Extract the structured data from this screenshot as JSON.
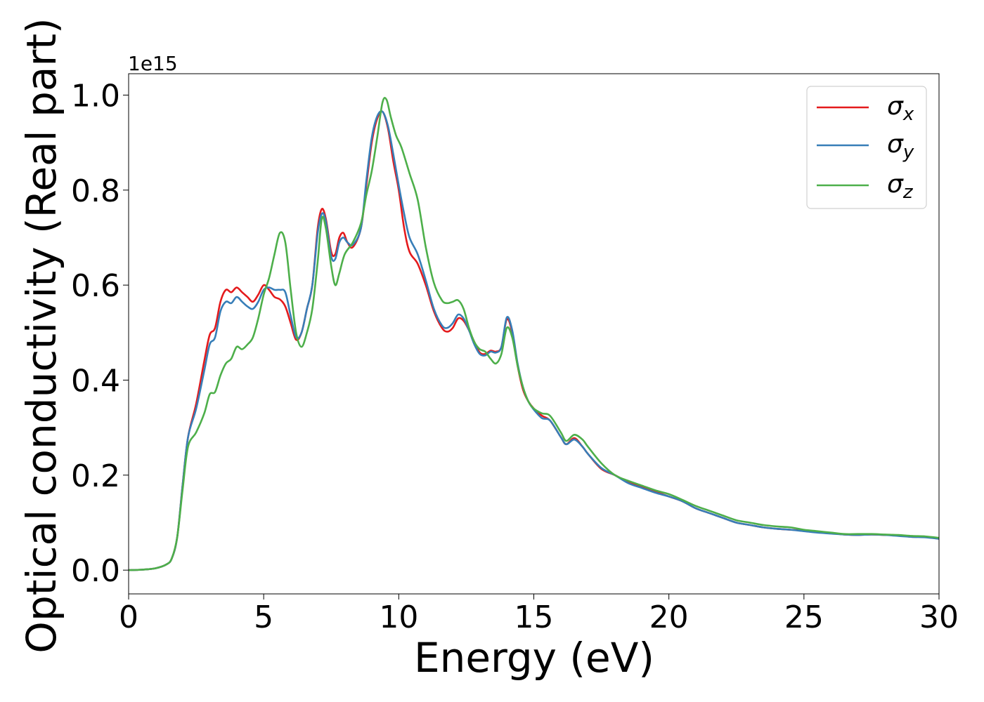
{
  "chart_data": {
    "type": "line",
    "title": "",
    "xlabel": "Energy (eV)",
    "ylabel": "Optical conductivity (Real part)",
    "y_offset_label": "1e15",
    "y_multiplier": 1000000000000000.0,
    "xlim": [
      0,
      30
    ],
    "ylim": [
      -0.05,
      1.045
    ],
    "xticks": [
      0,
      5,
      10,
      15,
      20,
      25,
      30
    ],
    "xtick_labels": [
      "0",
      "5",
      "10",
      "15",
      "20",
      "25",
      "30"
    ],
    "yticks": [
      0.0,
      0.2,
      0.4,
      0.6,
      0.8,
      1.0
    ],
    "ytick_labels": [
      "0.0",
      "0.2",
      "0.4",
      "0.6",
      "0.8",
      "1.0"
    ],
    "grid": false,
    "legend_position": "top-right",
    "series": [
      {
        "name": "σx",
        "legend_base": "σ",
        "legend_sub": "x",
        "color": "#e41a1c",
        "points": [
          [
            0,
            0
          ],
          [
            0.5,
            0.001
          ],
          [
            1.0,
            0.004
          ],
          [
            1.4,
            0.012
          ],
          [
            1.6,
            0.025
          ],
          [
            1.8,
            0.07
          ],
          [
            2.0,
            0.18
          ],
          [
            2.2,
            0.28
          ],
          [
            2.5,
            0.35
          ],
          [
            2.8,
            0.44
          ],
          [
            3.0,
            0.495
          ],
          [
            3.2,
            0.51
          ],
          [
            3.4,
            0.565
          ],
          [
            3.6,
            0.59
          ],
          [
            3.8,
            0.585
          ],
          [
            4.0,
            0.595
          ],
          [
            4.2,
            0.585
          ],
          [
            4.4,
            0.575
          ],
          [
            4.6,
            0.565
          ],
          [
            4.8,
            0.58
          ],
          [
            5.0,
            0.6
          ],
          [
            5.2,
            0.59
          ],
          [
            5.4,
            0.575
          ],
          [
            5.6,
            0.57
          ],
          [
            5.8,
            0.555
          ],
          [
            6.0,
            0.52
          ],
          [
            6.2,
            0.485
          ],
          [
            6.4,
            0.5
          ],
          [
            6.6,
            0.55
          ],
          [
            6.8,
            0.6
          ],
          [
            7.0,
            0.72
          ],
          [
            7.15,
            0.76
          ],
          [
            7.3,
            0.74
          ],
          [
            7.5,
            0.67
          ],
          [
            7.65,
            0.665
          ],
          [
            7.8,
            0.7
          ],
          [
            7.95,
            0.71
          ],
          [
            8.1,
            0.69
          ],
          [
            8.3,
            0.68
          ],
          [
            8.6,
            0.72
          ],
          [
            8.8,
            0.81
          ],
          [
            9.0,
            0.9
          ],
          [
            9.2,
            0.95
          ],
          [
            9.4,
            0.965
          ],
          [
            9.6,
            0.93
          ],
          [
            9.8,
            0.86
          ],
          [
            10.0,
            0.8
          ],
          [
            10.2,
            0.72
          ],
          [
            10.4,
            0.67
          ],
          [
            10.7,
            0.645
          ],
          [
            11.0,
            0.6
          ],
          [
            11.3,
            0.545
          ],
          [
            11.6,
            0.51
          ],
          [
            11.8,
            0.502
          ],
          [
            12.0,
            0.51
          ],
          [
            12.2,
            0.53
          ],
          [
            12.4,
            0.525
          ],
          [
            12.6,
            0.505
          ],
          [
            12.8,
            0.48
          ],
          [
            13.0,
            0.458
          ],
          [
            13.2,
            0.455
          ],
          [
            13.4,
            0.462
          ],
          [
            13.6,
            0.46
          ],
          [
            13.8,
            0.47
          ],
          [
            14.0,
            0.528
          ],
          [
            14.2,
            0.5
          ],
          [
            14.4,
            0.43
          ],
          [
            14.6,
            0.38
          ],
          [
            14.8,
            0.355
          ],
          [
            15.0,
            0.34
          ],
          [
            15.3,
            0.325
          ],
          [
            15.6,
            0.315
          ],
          [
            16.0,
            0.28
          ],
          [
            16.2,
            0.265
          ],
          [
            16.5,
            0.278
          ],
          [
            16.8,
            0.26
          ],
          [
            17.0,
            0.245
          ],
          [
            17.5,
            0.213
          ],
          [
            18.0,
            0.2
          ],
          [
            18.5,
            0.185
          ],
          [
            19.0,
            0.175
          ],
          [
            19.5,
            0.165
          ],
          [
            20.0,
            0.155
          ],
          [
            20.5,
            0.145
          ],
          [
            21.0,
            0.13
          ],
          [
            21.5,
            0.12
          ],
          [
            22.0,
            0.11
          ],
          [
            22.5,
            0.1
          ],
          [
            23.0,
            0.095
          ],
          [
            23.5,
            0.09
          ],
          [
            24.0,
            0.087
          ],
          [
            24.5,
            0.085
          ],
          [
            25.0,
            0.083
          ],
          [
            25.5,
            0.08
          ],
          [
            26.0,
            0.078
          ],
          [
            26.5,
            0.075
          ],
          [
            27.0,
            0.074
          ],
          [
            27.5,
            0.075
          ],
          [
            28.0,
            0.074
          ],
          [
            28.5,
            0.073
          ],
          [
            29.0,
            0.07
          ],
          [
            29.5,
            0.07
          ],
          [
            30.0,
            0.066
          ]
        ]
      },
      {
        "name": "σy",
        "legend_base": "σ",
        "legend_sub": "y",
        "color": "#377eb8",
        "points": [
          [
            0,
            0
          ],
          [
            0.5,
            0.001
          ],
          [
            1.0,
            0.004
          ],
          [
            1.4,
            0.012
          ],
          [
            1.6,
            0.025
          ],
          [
            1.8,
            0.07
          ],
          [
            2.0,
            0.18
          ],
          [
            2.2,
            0.28
          ],
          [
            2.5,
            0.34
          ],
          [
            2.8,
            0.42
          ],
          [
            3.0,
            0.475
          ],
          [
            3.2,
            0.49
          ],
          [
            3.4,
            0.545
          ],
          [
            3.6,
            0.565
          ],
          [
            3.8,
            0.562
          ],
          [
            4.0,
            0.575
          ],
          [
            4.2,
            0.565
          ],
          [
            4.4,
            0.555
          ],
          [
            4.6,
            0.55
          ],
          [
            4.8,
            0.565
          ],
          [
            5.0,
            0.59
          ],
          [
            5.2,
            0.595
          ],
          [
            5.4,
            0.59
          ],
          [
            5.6,
            0.59
          ],
          [
            5.8,
            0.585
          ],
          [
            6.0,
            0.535
          ],
          [
            6.2,
            0.49
          ],
          [
            6.4,
            0.5
          ],
          [
            6.6,
            0.55
          ],
          [
            6.8,
            0.6
          ],
          [
            7.0,
            0.71
          ],
          [
            7.15,
            0.75
          ],
          [
            7.3,
            0.735
          ],
          [
            7.5,
            0.66
          ],
          [
            7.65,
            0.655
          ],
          [
            7.8,
            0.69
          ],
          [
            7.95,
            0.7
          ],
          [
            8.1,
            0.69
          ],
          [
            8.3,
            0.685
          ],
          [
            8.6,
            0.72
          ],
          [
            8.8,
            0.82
          ],
          [
            9.0,
            0.91
          ],
          [
            9.2,
            0.955
          ],
          [
            9.4,
            0.965
          ],
          [
            9.6,
            0.935
          ],
          [
            9.8,
            0.875
          ],
          [
            10.0,
            0.81
          ],
          [
            10.2,
            0.75
          ],
          [
            10.4,
            0.7
          ],
          [
            10.7,
            0.665
          ],
          [
            11.0,
            0.61
          ],
          [
            11.3,
            0.55
          ],
          [
            11.6,
            0.515
          ],
          [
            11.8,
            0.51
          ],
          [
            12.0,
            0.52
          ],
          [
            12.2,
            0.538
          ],
          [
            12.4,
            0.53
          ],
          [
            12.6,
            0.505
          ],
          [
            12.8,
            0.475
          ],
          [
            13.0,
            0.455
          ],
          [
            13.2,
            0.452
          ],
          [
            13.4,
            0.46
          ],
          [
            13.6,
            0.458
          ],
          [
            13.8,
            0.47
          ],
          [
            14.0,
            0.532
          ],
          [
            14.2,
            0.505
          ],
          [
            14.4,
            0.435
          ],
          [
            14.6,
            0.385
          ],
          [
            14.8,
            0.355
          ],
          [
            15.0,
            0.338
          ],
          [
            15.3,
            0.32
          ],
          [
            15.6,
            0.315
          ],
          [
            16.0,
            0.28
          ],
          [
            16.2,
            0.265
          ],
          [
            16.5,
            0.275
          ],
          [
            16.8,
            0.26
          ],
          [
            17.0,
            0.245
          ],
          [
            17.5,
            0.215
          ],
          [
            18.0,
            0.2
          ],
          [
            18.5,
            0.183
          ],
          [
            19.0,
            0.173
          ],
          [
            19.5,
            0.163
          ],
          [
            20.0,
            0.155
          ],
          [
            20.5,
            0.145
          ],
          [
            21.0,
            0.13
          ],
          [
            21.5,
            0.12
          ],
          [
            22.0,
            0.11
          ],
          [
            22.5,
            0.1
          ],
          [
            23.0,
            0.095
          ],
          [
            23.5,
            0.09
          ],
          [
            24.0,
            0.087
          ],
          [
            24.5,
            0.085
          ],
          [
            25.0,
            0.082
          ],
          [
            25.5,
            0.079
          ],
          [
            26.0,
            0.077
          ],
          [
            26.5,
            0.075
          ],
          [
            27.0,
            0.074
          ],
          [
            27.5,
            0.075
          ],
          [
            28.0,
            0.074
          ],
          [
            28.5,
            0.072
          ],
          [
            29.0,
            0.07
          ],
          [
            29.5,
            0.069
          ],
          [
            30.0,
            0.066
          ]
        ]
      },
      {
        "name": "σz",
        "legend_base": "σ",
        "legend_sub": "z",
        "color": "#4daf4a",
        "points": [
          [
            0,
            0
          ],
          [
            0.5,
            0.001
          ],
          [
            1.0,
            0.004
          ],
          [
            1.4,
            0.012
          ],
          [
            1.6,
            0.025
          ],
          [
            1.8,
            0.07
          ],
          [
            2.0,
            0.17
          ],
          [
            2.2,
            0.26
          ],
          [
            2.5,
            0.29
          ],
          [
            2.8,
            0.33
          ],
          [
            3.0,
            0.37
          ],
          [
            3.2,
            0.375
          ],
          [
            3.4,
            0.41
          ],
          [
            3.6,
            0.435
          ],
          [
            3.8,
            0.445
          ],
          [
            4.0,
            0.47
          ],
          [
            4.2,
            0.465
          ],
          [
            4.4,
            0.475
          ],
          [
            4.6,
            0.49
          ],
          [
            4.8,
            0.53
          ],
          [
            5.0,
            0.58
          ],
          [
            5.2,
            0.615
          ],
          [
            5.4,
            0.665
          ],
          [
            5.6,
            0.71
          ],
          [
            5.8,
            0.69
          ],
          [
            6.0,
            0.59
          ],
          [
            6.2,
            0.5
          ],
          [
            6.4,
            0.47
          ],
          [
            6.6,
            0.5
          ],
          [
            6.8,
            0.55
          ],
          [
            7.0,
            0.65
          ],
          [
            7.15,
            0.74
          ],
          [
            7.3,
            0.72
          ],
          [
            7.5,
            0.64
          ],
          [
            7.65,
            0.6
          ],
          [
            7.8,
            0.625
          ],
          [
            8.0,
            0.665
          ],
          [
            8.3,
            0.69
          ],
          [
            8.6,
            0.73
          ],
          [
            8.8,
            0.79
          ],
          [
            9.0,
            0.84
          ],
          [
            9.2,
            0.91
          ],
          [
            9.4,
            0.985
          ],
          [
            9.55,
            0.99
          ],
          [
            9.7,
            0.955
          ],
          [
            9.9,
            0.915
          ],
          [
            10.1,
            0.89
          ],
          [
            10.4,
            0.835
          ],
          [
            10.7,
            0.78
          ],
          [
            11.0,
            0.68
          ],
          [
            11.3,
            0.605
          ],
          [
            11.6,
            0.568
          ],
          [
            11.8,
            0.562
          ],
          [
            12.0,
            0.565
          ],
          [
            12.2,
            0.568
          ],
          [
            12.4,
            0.55
          ],
          [
            12.6,
            0.51
          ],
          [
            12.8,
            0.48
          ],
          [
            13.0,
            0.465
          ],
          [
            13.2,
            0.46
          ],
          [
            13.4,
            0.445
          ],
          [
            13.6,
            0.435
          ],
          [
            13.8,
            0.455
          ],
          [
            14.0,
            0.51
          ],
          [
            14.2,
            0.49
          ],
          [
            14.4,
            0.43
          ],
          [
            14.6,
            0.385
          ],
          [
            14.8,
            0.355
          ],
          [
            15.0,
            0.34
          ],
          [
            15.3,
            0.33
          ],
          [
            15.6,
            0.325
          ],
          [
            16.0,
            0.29
          ],
          [
            16.2,
            0.272
          ],
          [
            16.5,
            0.285
          ],
          [
            16.8,
            0.275
          ],
          [
            17.0,
            0.26
          ],
          [
            17.5,
            0.225
          ],
          [
            18.0,
            0.2
          ],
          [
            18.5,
            0.188
          ],
          [
            19.0,
            0.178
          ],
          [
            19.5,
            0.168
          ],
          [
            20.0,
            0.16
          ],
          [
            20.5,
            0.148
          ],
          [
            21.0,
            0.135
          ],
          [
            21.5,
            0.125
          ],
          [
            22.0,
            0.115
          ],
          [
            22.5,
            0.105
          ],
          [
            23.0,
            0.1
          ],
          [
            23.5,
            0.095
          ],
          [
            24.0,
            0.092
          ],
          [
            24.5,
            0.09
          ],
          [
            25.0,
            0.085
          ],
          [
            25.5,
            0.082
          ],
          [
            26.0,
            0.079
          ],
          [
            26.5,
            0.076
          ],
          [
            27.0,
            0.076
          ],
          [
            27.5,
            0.076
          ],
          [
            28.0,
            0.075
          ],
          [
            28.5,
            0.074
          ],
          [
            29.0,
            0.072
          ],
          [
            29.5,
            0.071
          ],
          [
            30.0,
            0.068
          ]
        ]
      }
    ]
  }
}
